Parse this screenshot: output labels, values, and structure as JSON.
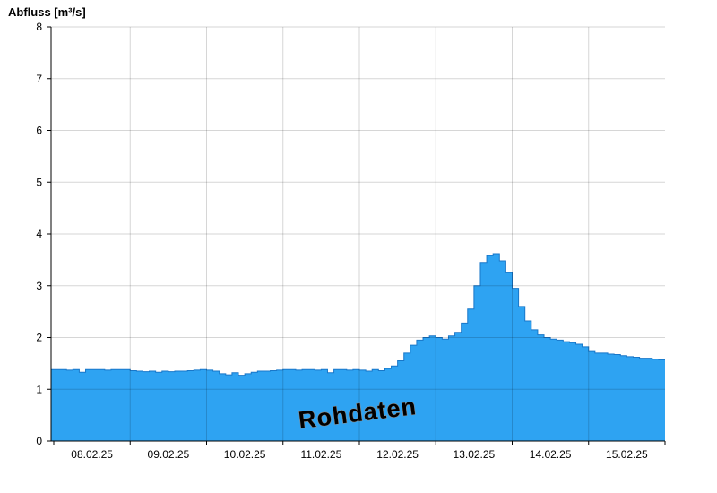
{
  "chart_data": {
    "type": "area",
    "title": "Abfluss [m³/s]",
    "ylabel": "Abfluss [m³/s]",
    "xlabel": "",
    "ylim": [
      0,
      8
    ],
    "yticks": [
      0,
      1,
      2,
      3,
      4,
      5,
      6,
      7,
      8
    ],
    "categories": [
      "08.02.25",
      "09.02.25",
      "10.02.25",
      "11.02.25",
      "12.02.25",
      "13.02.25",
      "14.02.25",
      "15.02.25"
    ],
    "points_per_day": 12,
    "step_hours": 2,
    "grid": true,
    "legend_position": "none",
    "watermark": "Rohdaten",
    "series": [
      {
        "name": "Rohdaten",
        "unit": "m³/s",
        "values": [
          1.38,
          1.38,
          1.37,
          1.38,
          1.33,
          1.38,
          1.38,
          1.38,
          1.37,
          1.38,
          1.38,
          1.38,
          1.36,
          1.35,
          1.34,
          1.35,
          1.33,
          1.35,
          1.34,
          1.35,
          1.35,
          1.36,
          1.37,
          1.38,
          1.37,
          1.35,
          1.3,
          1.28,
          1.32,
          1.27,
          1.3,
          1.33,
          1.35,
          1.35,
          1.36,
          1.37,
          1.38,
          1.38,
          1.37,
          1.38,
          1.38,
          1.37,
          1.38,
          1.32,
          1.38,
          1.38,
          1.37,
          1.38,
          1.37,
          1.35,
          1.38,
          1.36,
          1.4,
          1.45,
          1.55,
          1.7,
          1.85,
          1.95,
          2.0,
          2.03,
          2.0,
          1.97,
          2.03,
          2.1,
          2.28,
          2.55,
          3.0,
          3.45,
          3.58,
          3.62,
          3.48,
          3.25,
          2.95,
          2.6,
          2.32,
          2.15,
          2.05,
          2.0,
          1.97,
          1.95,
          1.92,
          1.9,
          1.87,
          1.82,
          1.73,
          1.7,
          1.7,
          1.68,
          1.67,
          1.65,
          1.63,
          1.62,
          1.6,
          1.6,
          1.58,
          1.57
        ]
      }
    ],
    "colors": {
      "fill": "#2EA3F2",
      "line": "#1877C9",
      "grid_overlay": "rgba(0,0,0,0.16)",
      "axis": "#000000",
      "watermark_fill": "#ffffff",
      "watermark_stroke": "#8c8c8c"
    }
  }
}
